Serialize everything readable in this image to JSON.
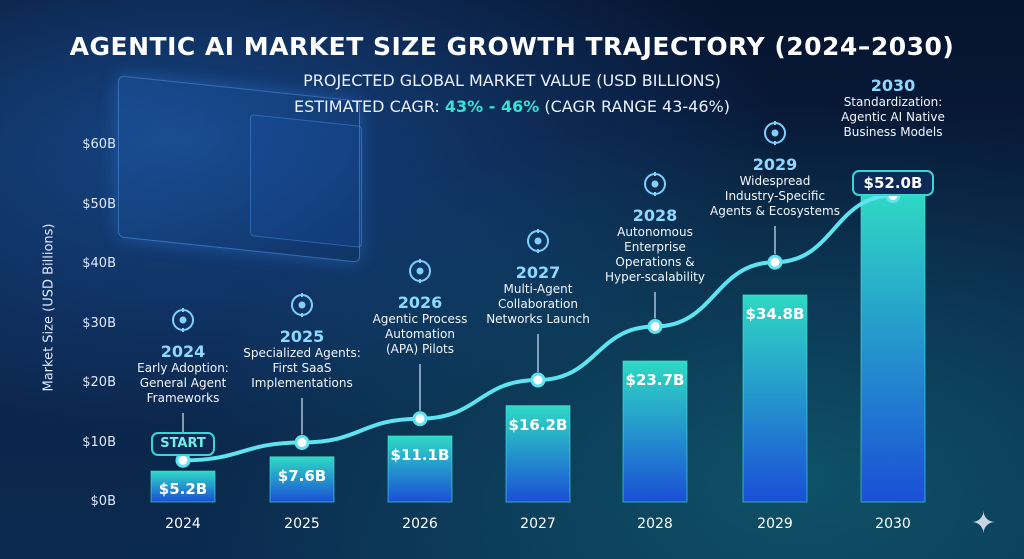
{
  "header": {
    "title": "AGENTIC AI MARKET SIZE GROWTH TRAJECTORY (2024–2030)",
    "subtitle": "PROJECTED GLOBAL MARKET VALUE (USD BILLIONS)",
    "cagr_prefix": "ESTIMATED CAGR: ",
    "cagr_value": "43% - 46%",
    "cagr_suffix": " (CAGR RANGE 43-46%)"
  },
  "start_label": "START",
  "colors": {
    "accent": "#3ad6d2",
    "bar_top": "#2fd9c4",
    "bar_bottom": "#1a4fd6",
    "line": "#5fe3f0"
  },
  "chart_data": {
    "type": "bar",
    "ylabel": "Market Size (USD Billions)",
    "ylim": [
      0,
      60
    ],
    "yticks": [
      "$0B",
      "$10B",
      "$20B",
      "$30B",
      "$40B",
      "$50B",
      "$60B"
    ],
    "categories": [
      "2024",
      "2025",
      "2026",
      "2027",
      "2028",
      "2029",
      "2030"
    ],
    "values": [
      5.2,
      7.6,
      11.1,
      16.2,
      23.7,
      34.8,
      52.0
    ],
    "value_labels": [
      "$5.2B",
      "$7.6B",
      "$11.1B",
      "$16.2B",
      "$23.7B",
      "$34.8B",
      "$52.0B"
    ],
    "trend_line_values": [
      7,
      10,
      14,
      20.5,
      29.5,
      40.3,
      51.5
    ],
    "grid": false,
    "annotations": [
      {
        "year": "2024",
        "lines": [
          "Early Adoption:",
          "General Agent",
          "Frameworks"
        ],
        "icon": "robot-icon"
      },
      {
        "year": "2025",
        "lines": [
          "Specialized Agents:",
          "First SaaS",
          "Implementations"
        ],
        "icon": "network-icon"
      },
      {
        "year": "2026",
        "lines": [
          "Agentic Process",
          "Automation",
          "(APA) Pilots"
        ],
        "icon": "gears-icon"
      },
      {
        "year": "2027",
        "lines": [
          "Multi-Agent",
          "Collaboration",
          "Networks Launch"
        ],
        "icon": "people-network-icon"
      },
      {
        "year": "2028",
        "lines": [
          "Autonomous",
          "Enterprise",
          "Operations &",
          "Hyper-scalability"
        ],
        "icon": "chip-icon"
      },
      {
        "year": "2029",
        "lines": [
          "Widespread",
          "Industry-Specific",
          "Agents & Ecosystems"
        ],
        "icon": "dollar-cycle-icon"
      },
      {
        "year": "2030",
        "lines": [
          "Standardization:",
          "Agentic AI Native",
          "Business Models"
        ],
        "icon": ""
      }
    ]
  }
}
